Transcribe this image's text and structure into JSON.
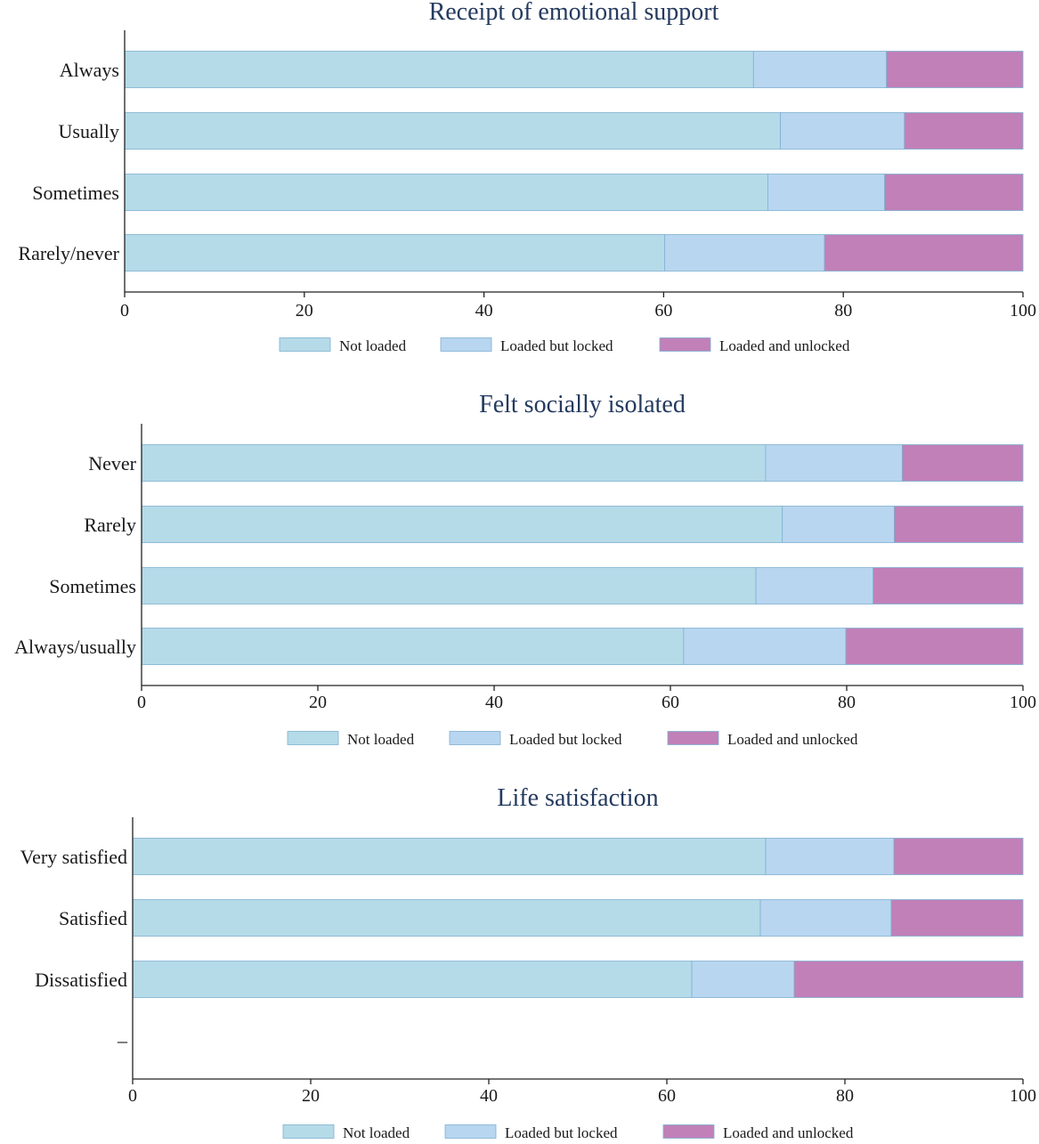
{
  "colors": {
    "not_loaded": "#b5dbe8",
    "loaded_locked": "#b8d6f0",
    "loaded_unlocked": "#c180b8",
    "bar_stroke": "#7fb0d0",
    "title_color": "#243a5e"
  },
  "chart_data": [
    {
      "type": "bar",
      "orientation": "horizontal",
      "stacked": true,
      "title": "Receipt of emotional support",
      "categories": [
        "Always",
        "Usually",
        "Sometimes",
        "Rarely/never"
      ],
      "series": [
        {
          "name": "Not loaded",
          "values": [
            70,
            73,
            71.6,
            60.1
          ]
        },
        {
          "name": "Loaded but locked",
          "values": [
            14.8,
            13.8,
            13,
            17.8
          ]
        },
        {
          "name": "Loaded and unlocked",
          "values": [
            15.2,
            13.2,
            15.4,
            22.1
          ]
        }
      ],
      "xlim": [
        0,
        100
      ],
      "xticks": [
        "0",
        "20",
        "40",
        "60",
        "80",
        "100"
      ],
      "legend_position": "bottom",
      "legend": [
        "Not loaded",
        "Loaded but locked",
        "Loaded and unlocked"
      ]
    },
    {
      "type": "bar",
      "orientation": "horizontal",
      "stacked": true,
      "title": "Felt socially isolated",
      "categories": [
        "Never",
        "Rarely",
        "Sometimes",
        "Always/usually"
      ],
      "series": [
        {
          "name": "Not loaded",
          "values": [
            70.8,
            72.7,
            69.7,
            61.5
          ]
        },
        {
          "name": "Loaded but locked",
          "values": [
            15.5,
            12.7,
            13.3,
            18.4
          ]
        },
        {
          "name": "Loaded and unlocked",
          "values": [
            13.7,
            14.6,
            17,
            20.1
          ]
        }
      ],
      "xlim": [
        0,
        100
      ],
      "xticks": [
        "0",
        "20",
        "40",
        "60",
        "80",
        "100"
      ],
      "legend_position": "bottom",
      "legend": [
        "Not loaded",
        "Loaded but locked",
        "Loaded and unlocked"
      ]
    },
    {
      "type": "bar",
      "orientation": "horizontal",
      "stacked": true,
      "title": "Life satisfaction",
      "categories": [
        "Very satisfied",
        "Satisfied",
        "Dissatisfied",
        "–"
      ],
      "series": [
        {
          "name": "Not loaded",
          "values": [
            71.1,
            70.5,
            62.8,
            0
          ]
        },
        {
          "name": "Loaded but locked",
          "values": [
            14.4,
            14.7,
            11.5,
            0
          ]
        },
        {
          "name": "Loaded and unlocked",
          "values": [
            14.5,
            14.8,
            25.7,
            0
          ]
        }
      ],
      "xlim": [
        0,
        100
      ],
      "xticks": [
        "0",
        "20",
        "40",
        "60",
        "80",
        "100"
      ],
      "legend_position": "bottom",
      "legend": [
        "Not loaded",
        "Loaded but locked",
        "Loaded and unlocked"
      ]
    }
  ]
}
